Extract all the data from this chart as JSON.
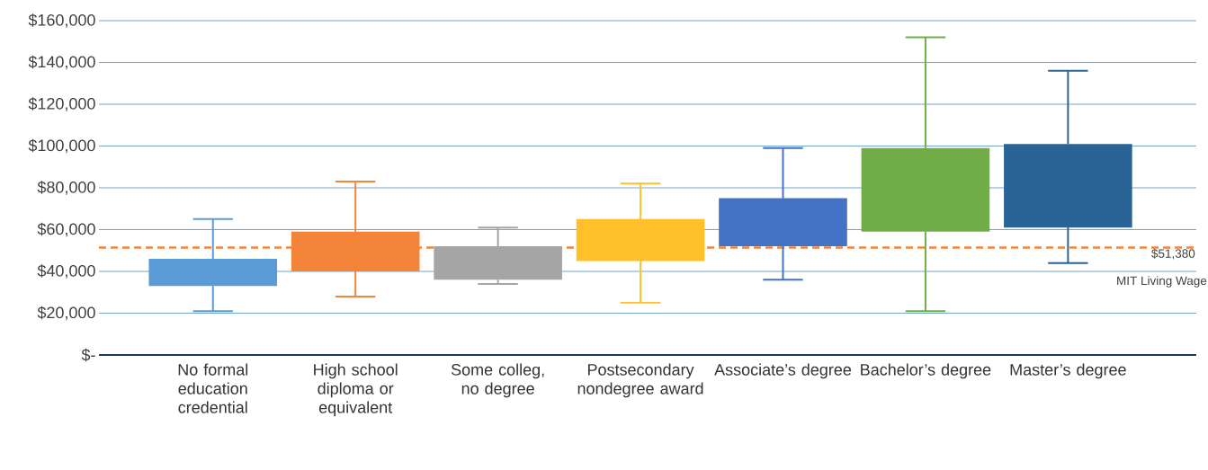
{
  "chart_data": {
    "type": "box",
    "categories": [
      "No formal education credential",
      "High school diploma or equivalent",
      "Some colleg, no degree",
      "Postsecondary nondegree award",
      "Associate’s degree",
      "Bachelor’s degree",
      "Master’s degree"
    ],
    "boxes": [
      {
        "low": 21000,
        "q1": 33000,
        "q3": 46000,
        "high": 65000
      },
      {
        "low": 28000,
        "q1": 40000,
        "q3": 59000,
        "high": 83000
      },
      {
        "low": 34000,
        "q1": 36000,
        "q3": 52000,
        "high": 61000
      },
      {
        "low": 25000,
        "q1": 45000,
        "q3": 65000,
        "high": 82000
      },
      {
        "low": 36000,
        "q1": 52000,
        "q3": 75000,
        "high": 99000
      },
      {
        "low": 21000,
        "q1": 59000,
        "q3": 99000,
        "high": 152000
      },
      {
        "low": 44000,
        "q1": 61000,
        "q3": 101000,
        "high": 136000
      }
    ],
    "colors": [
      "#5b9bd5",
      "#f4843a",
      "#a5a5a5",
      "#ffc02a",
      "#4472c4",
      "#70ad47",
      "#2a6496"
    ],
    "ylim": [
      0,
      160000
    ],
    "yticks": [
      {
        "value": 0,
        "label": "$-"
      },
      {
        "value": 20000,
        "label": "$20,000"
      },
      {
        "value": 40000,
        "label": "$40,000"
      },
      {
        "value": 60000,
        "label": "$60,000"
      },
      {
        "value": 80000,
        "label": "$80,000"
      },
      {
        "value": 100000,
        "label": "$100,000"
      },
      {
        "value": 120000,
        "label": "$120,000"
      },
      {
        "value": 140000,
        "label": "$140,000"
      },
      {
        "value": 160000,
        "label": "$160,000"
      }
    ],
    "grid": "y",
    "ref_lines": [
      {
        "axis": "y",
        "value": 51380,
        "label": "$51,380",
        "color": "#f4843a",
        "line_style": "dashed"
      }
    ],
    "annotations": [
      "MIT Living Wage"
    ]
  }
}
